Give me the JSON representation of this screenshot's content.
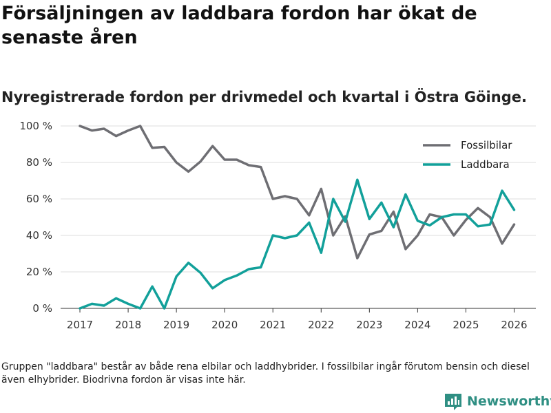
{
  "header": {
    "title": "Försäljningen av laddbara fordon har ökat de senaste åren",
    "subtitle": "Nyregistrerade fordon per drivmedel och kvartal i Östra Göinge."
  },
  "footer": {
    "note": "Gruppen \"laddbara\" består av både rena elbilar och laddhybrider. I fossilbilar ingår förutom bensin och diesel även elhybrider. Biodrivna fordon är visas inte här.",
    "brand": "Newsworthy"
  },
  "colors": {
    "fossil": "#6e6e73",
    "laddbara": "#12a09a",
    "grid": "#dddddd",
    "brand": "#2f8f83"
  },
  "chart_data": {
    "type": "line",
    "title": "Försäljningen av laddbara fordon har ökat de senaste åren",
    "xlabel": "",
    "ylabel": "",
    "xlim": [
      2016.6,
      2026.45
    ],
    "ylim": [
      0,
      100
    ],
    "x_ticks": [
      2017,
      2018,
      2019,
      2020,
      2021,
      2022,
      2023,
      2024,
      2025,
      2026
    ],
    "x_tick_labels": [
      "2017",
      "2018",
      "2019",
      "2020",
      "2021",
      "2022",
      "2023",
      "2024",
      "2025",
      "2026"
    ],
    "y_ticks": [
      0,
      20,
      40,
      60,
      80,
      100
    ],
    "y_tick_labels": [
      "0 %",
      "20 %",
      "40 %",
      "60 %",
      "80 %",
      "100 %"
    ],
    "grid": true,
    "legend_position": "top-right",
    "x": [
      2017,
      2017.25,
      2017.5,
      2017.75,
      2018,
      2018.25,
      2018.5,
      2018.75,
      2019,
      2019.25,
      2019.5,
      2019.75,
      2020,
      2020.25,
      2020.5,
      2020.75,
      2021,
      2021.25,
      2021.5,
      2021.75,
      2022,
      2022.25,
      2022.5,
      2022.75,
      2023,
      2023.25,
      2023.5,
      2023.75,
      2024,
      2024.25,
      2024.5,
      2024.75,
      2025,
      2025.25,
      2025.5,
      2025.75,
      2026
    ],
    "series": [
      {
        "name": "Fossilbilar",
        "color": "#6e6e73",
        "values": [
          100,
          97.5,
          98.5,
          94.5,
          97.5,
          100,
          88,
          88.5,
          80,
          75,
          80.5,
          89,
          81.5,
          81.5,
          78.5,
          77.5,
          60,
          61.5,
          60,
          51,
          65.5,
          40,
          50.5,
          27.5,
          40.5,
          42.5,
          53,
          32.5,
          40,
          51.5,
          50,
          40,
          48.5,
          55,
          50,
          35.5,
          46
        ]
      },
      {
        "name": "Laddbara",
        "color": "#12a09a",
        "values": [
          0,
          2.5,
          1.5,
          5.5,
          2.5,
          0,
          12,
          0,
          17.5,
          25,
          19.5,
          11,
          15.5,
          18,
          21.5,
          22.5,
          40,
          38.5,
          40,
          47,
          30.5,
          60,
          47.5,
          70.5,
          49,
          58,
          44.5,
          62.5,
          48,
          45.5,
          50,
          51.5,
          51.5,
          45,
          46,
          64.5,
          54
        ]
      }
    ]
  }
}
